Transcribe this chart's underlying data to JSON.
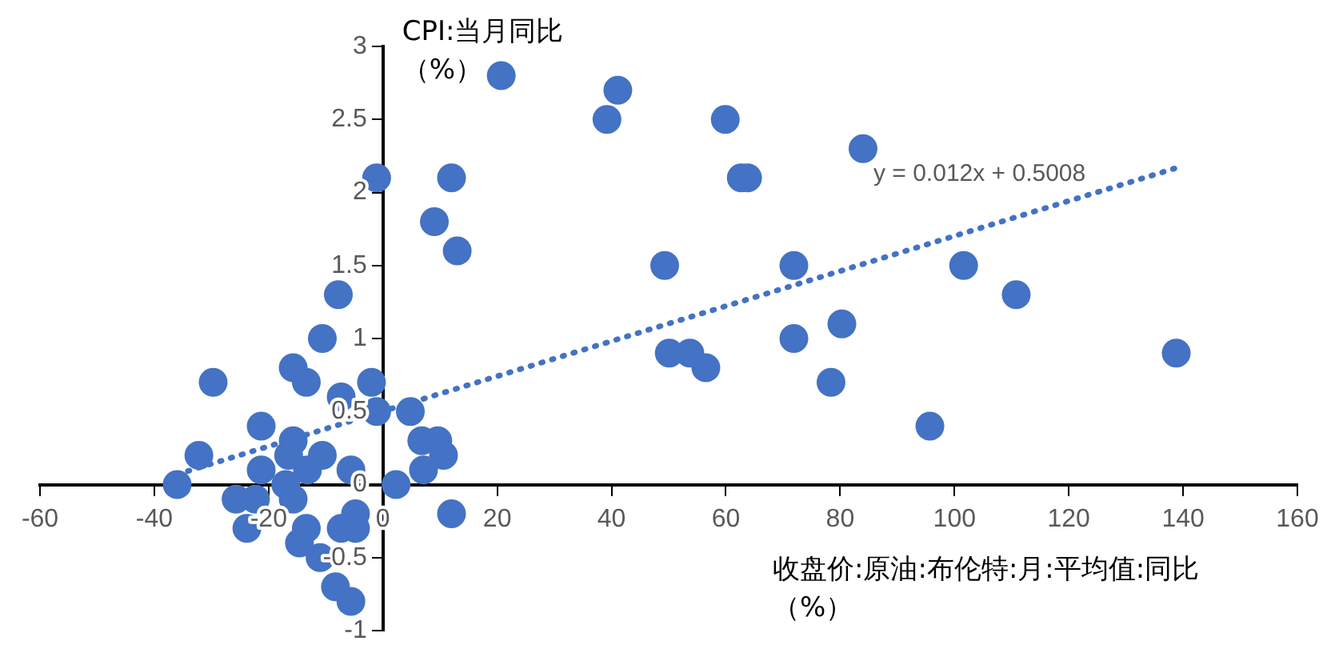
{
  "chart_data": {
    "type": "scatter",
    "ylabel": "CPI:当月同比（%）",
    "xlabel": "收盘价:原油:布伦特:月:平均值:同比（%）",
    "xlim": [
      -60,
      160
    ],
    "xticks": [
      -60,
      -40,
      -20,
      0,
      20,
      40,
      60,
      80,
      100,
      120,
      140,
      160
    ],
    "ylim": [
      -1,
      3
    ],
    "yticks": [
      -1,
      -0.5,
      0,
      0.5,
      1,
      1.5,
      2,
      2.5,
      3
    ],
    "grid": false,
    "legend": false,
    "marker": "circle",
    "series": [
      {
        "color": "#4472c4",
        "x": [
          -1.1,
          12,
          9,
          13,
          -7.8,
          -10.6,
          -29.7,
          -15.7,
          -13.4,
          -2,
          -7.3,
          -1.1,
          4.8,
          -21.3,
          -32.2,
          -36,
          -21.3,
          -15.7,
          -16.5,
          -13.2,
          -10.6,
          -5.6,
          -17,
          -15.7,
          -25.7,
          -22.3,
          -23.8,
          -13.4,
          -14.6,
          -4.8,
          -7.3,
          -4.8,
          -11,
          -8.3,
          -5.6,
          2.3,
          6.8,
          9.6,
          10.6,
          7.1,
          12,
          20.7,
          41.1,
          39.2,
          59.9,
          62.7,
          63.8,
          84,
          49.3,
          71.9,
          50.1,
          53.7,
          56.5,
          71.9,
          80.3,
          78.4,
          101.6,
          110.8,
          138.8,
          95.7
        ],
        "values": [
          2.1,
          2.1,
          1.8,
          1.6,
          1.3,
          1.0,
          0.7,
          0.8,
          0.7,
          0.7,
          0.6,
          0.5,
          0.5,
          0.4,
          0.2,
          0,
          0.1,
          0.3,
          0.2,
          0.1,
          0.2,
          0.1,
          0,
          -0.1,
          -0.1,
          -0.1,
          -0.3,
          -0.3,
          -0.4,
          -0.2,
          -0.3,
          -0.3,
          -0.5,
          -0.7,
          -0.8,
          0,
          0.3,
          0.3,
          0.2,
          0.1,
          -0.2,
          2.8,
          2.7,
          2.5,
          2.5,
          2.1,
          2.1,
          2.3,
          1.5,
          1.5,
          0.9,
          0.9,
          0.8,
          1.0,
          1.1,
          0.7,
          1.5,
          1.3,
          0.9,
          0.4
        ]
      },
      {
        "type": "line",
        "color": "#4472c4",
        "line_style": "dotted",
        "marker": "none",
        "x": [
          -36,
          139
        ],
        "values": [
          0.07,
          2.17
        ]
      }
    ],
    "annotations": [
      "y = 0.012x + 0.5008"
    ]
  }
}
